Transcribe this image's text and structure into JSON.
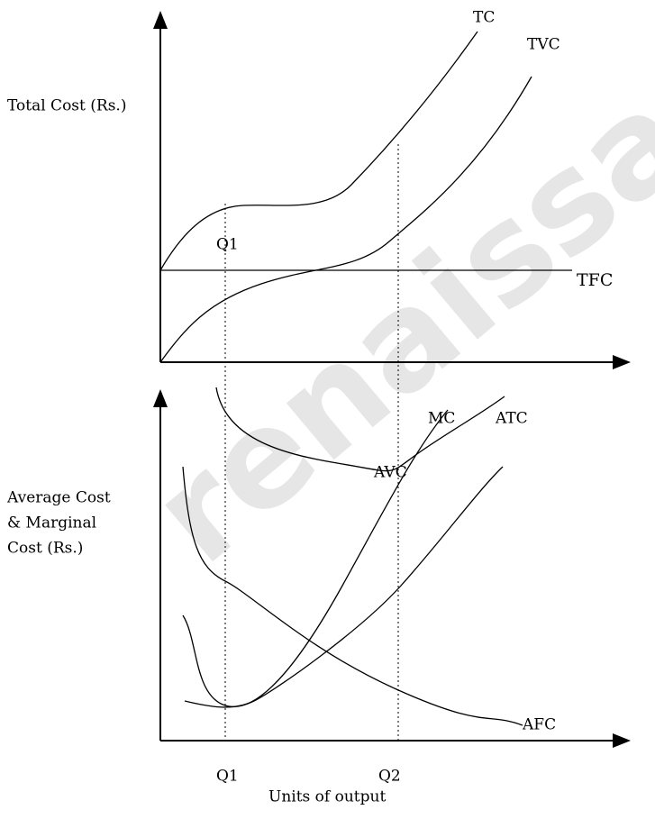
{
  "watermark": "renaissa",
  "top_panel": {
    "y_axis_label": "Total Cost (Rs.)",
    "curves": {
      "tc": "TC",
      "tvc": "TVC",
      "tfc": "TFC"
    },
    "q1": "Q1"
  },
  "bottom_panel": {
    "y_axis_label": [
      "Average Cost",
      "& Marginal",
      "Cost (Rs.)"
    ],
    "curves": {
      "mc": "MC",
      "atc": "ATC",
      "avc": "AVC",
      "afc": "AFC"
    },
    "q1": "Q1",
    "q2": "Q2",
    "x_axis_label": "Units of output"
  }
}
